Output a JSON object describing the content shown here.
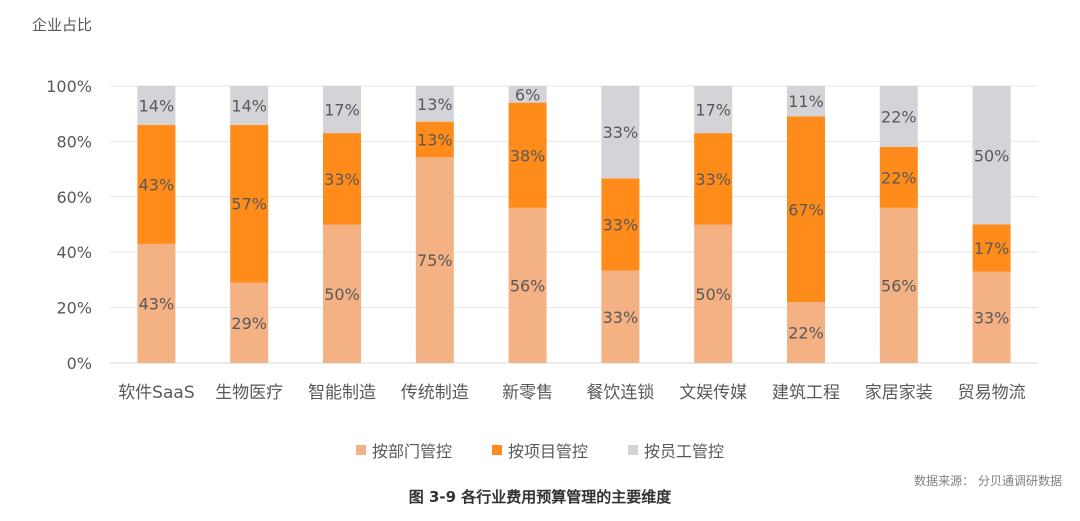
{
  "y_axis_title": "企业占比",
  "source": "数据来源： 分贝通调研数据",
  "figure_title": "图 3-9 各行业费用预算管理的主要维度",
  "colors": {
    "dept": "#F4B183",
    "project": "#FF8C1A",
    "staff": "#D4D3D8",
    "grid": "#E6E6E6",
    "axis": "#D9D9D9",
    "text": "#595959"
  },
  "chart_data": {
    "type": "bar",
    "stacked": true,
    "categories": [
      "软件SaaS",
      "生物医疗",
      "智能制造",
      "传统制造",
      "新零售",
      "餐饮连锁",
      "文娱传媒",
      "建筑工程",
      "家居家装",
      "贸易物流"
    ],
    "series": [
      {
        "name": "按部门管控",
        "values": [
          43,
          29,
          50,
          75,
          56,
          33,
          50,
          22,
          56,
          33
        ],
        "labels": [
          "43%",
          "29%",
          "50%",
          "75%",
          "56%",
          "33%",
          "50%",
          "22%",
          "56%",
          "33%"
        ]
      },
      {
        "name": "按项目管控",
        "values": [
          43,
          57,
          33,
          13,
          38,
          33,
          33,
          67,
          22,
          17
        ],
        "labels": [
          "43%",
          "57%",
          "33%",
          "13%",
          "38%",
          "33%",
          "33%",
          "67%",
          "22%",
          "17%"
        ]
      },
      {
        "name": "按员工管控",
        "values": [
          14,
          14,
          17,
          13,
          6,
          33,
          17,
          11,
          22,
          50
        ],
        "labels": [
          "14%",
          "14%",
          "17%",
          "13%",
          "6%",
          "33%",
          "17%",
          "11%",
          "22%",
          "50%"
        ]
      }
    ],
    "y_ticks": [
      "0%",
      "20%",
      "40%",
      "60%",
      "80%",
      "100%"
    ],
    "ylim": [
      0,
      100
    ],
    "grid": true,
    "legend_position": "bottom"
  }
}
